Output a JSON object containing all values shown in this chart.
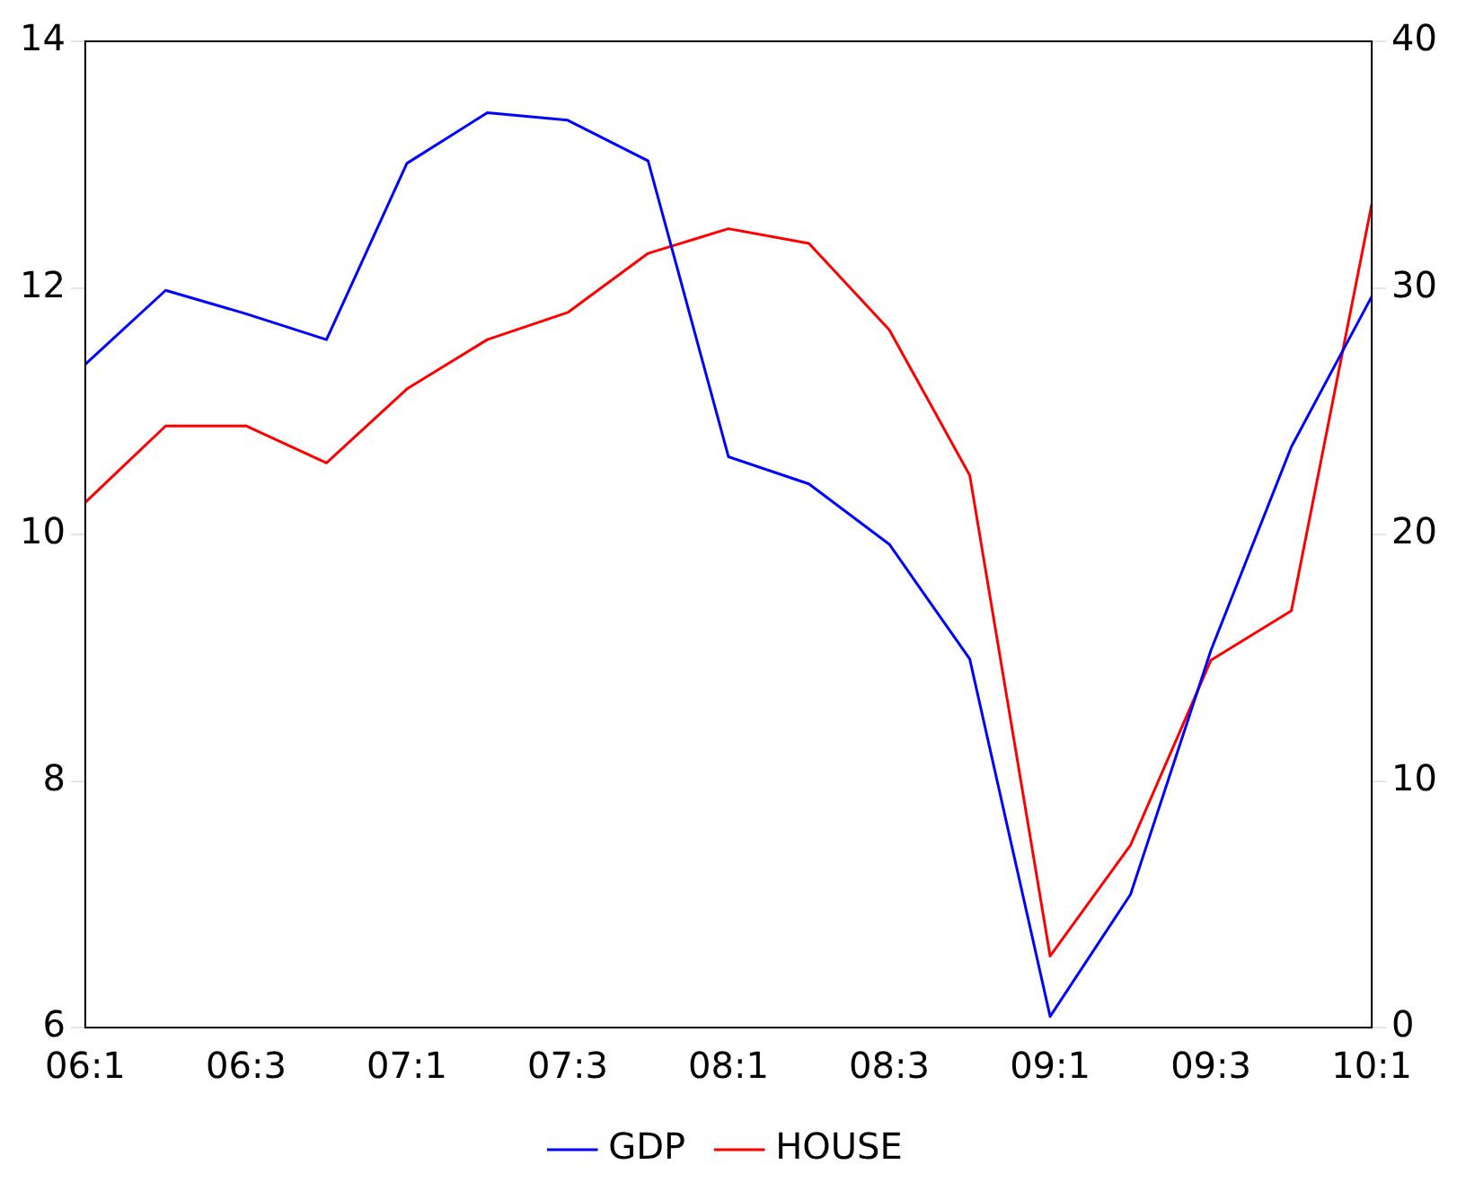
{
  "chart_data": {
    "type": "line",
    "categories": [
      "06:1",
      null,
      "06:3",
      null,
      "07:1",
      null,
      "07:3",
      null,
      "08:1",
      null,
      "08:3",
      null,
      "09:1",
      null,
      "09:3",
      null,
      "10:1"
    ],
    "series": [
      {
        "name": "GDP",
        "color": "#0000ff",
        "values": [
          11.38,
          11.98,
          11.79,
          11.58,
          13.01,
          13.42,
          13.36,
          13.03,
          10.63,
          10.41,
          9.92,
          8.99,
          6.09,
          7.08,
          9.06,
          10.71,
          11.93
        ]
      },
      {
        "name": "HOUSE",
        "color": "#ff0000",
        "axis": "y2",
        "values": [
          21.3,
          24.4,
          24.4,
          22.9,
          25.9,
          27.9,
          29.0,
          31.4,
          32.4,
          31.8,
          28.3,
          22.4,
          2.9,
          7.4,
          14.9,
          16.9,
          33.4
        ]
      }
    ],
    "ylim": [
      6,
      14
    ],
    "yticks": [
      6,
      8,
      10,
      12,
      14
    ],
    "y2lim": [
      0,
      40
    ],
    "y2ticks": [
      0,
      10,
      20,
      30,
      40
    ],
    "grid": false,
    "legend": "bottom",
    "marker": "none",
    "line_style": "solid"
  }
}
